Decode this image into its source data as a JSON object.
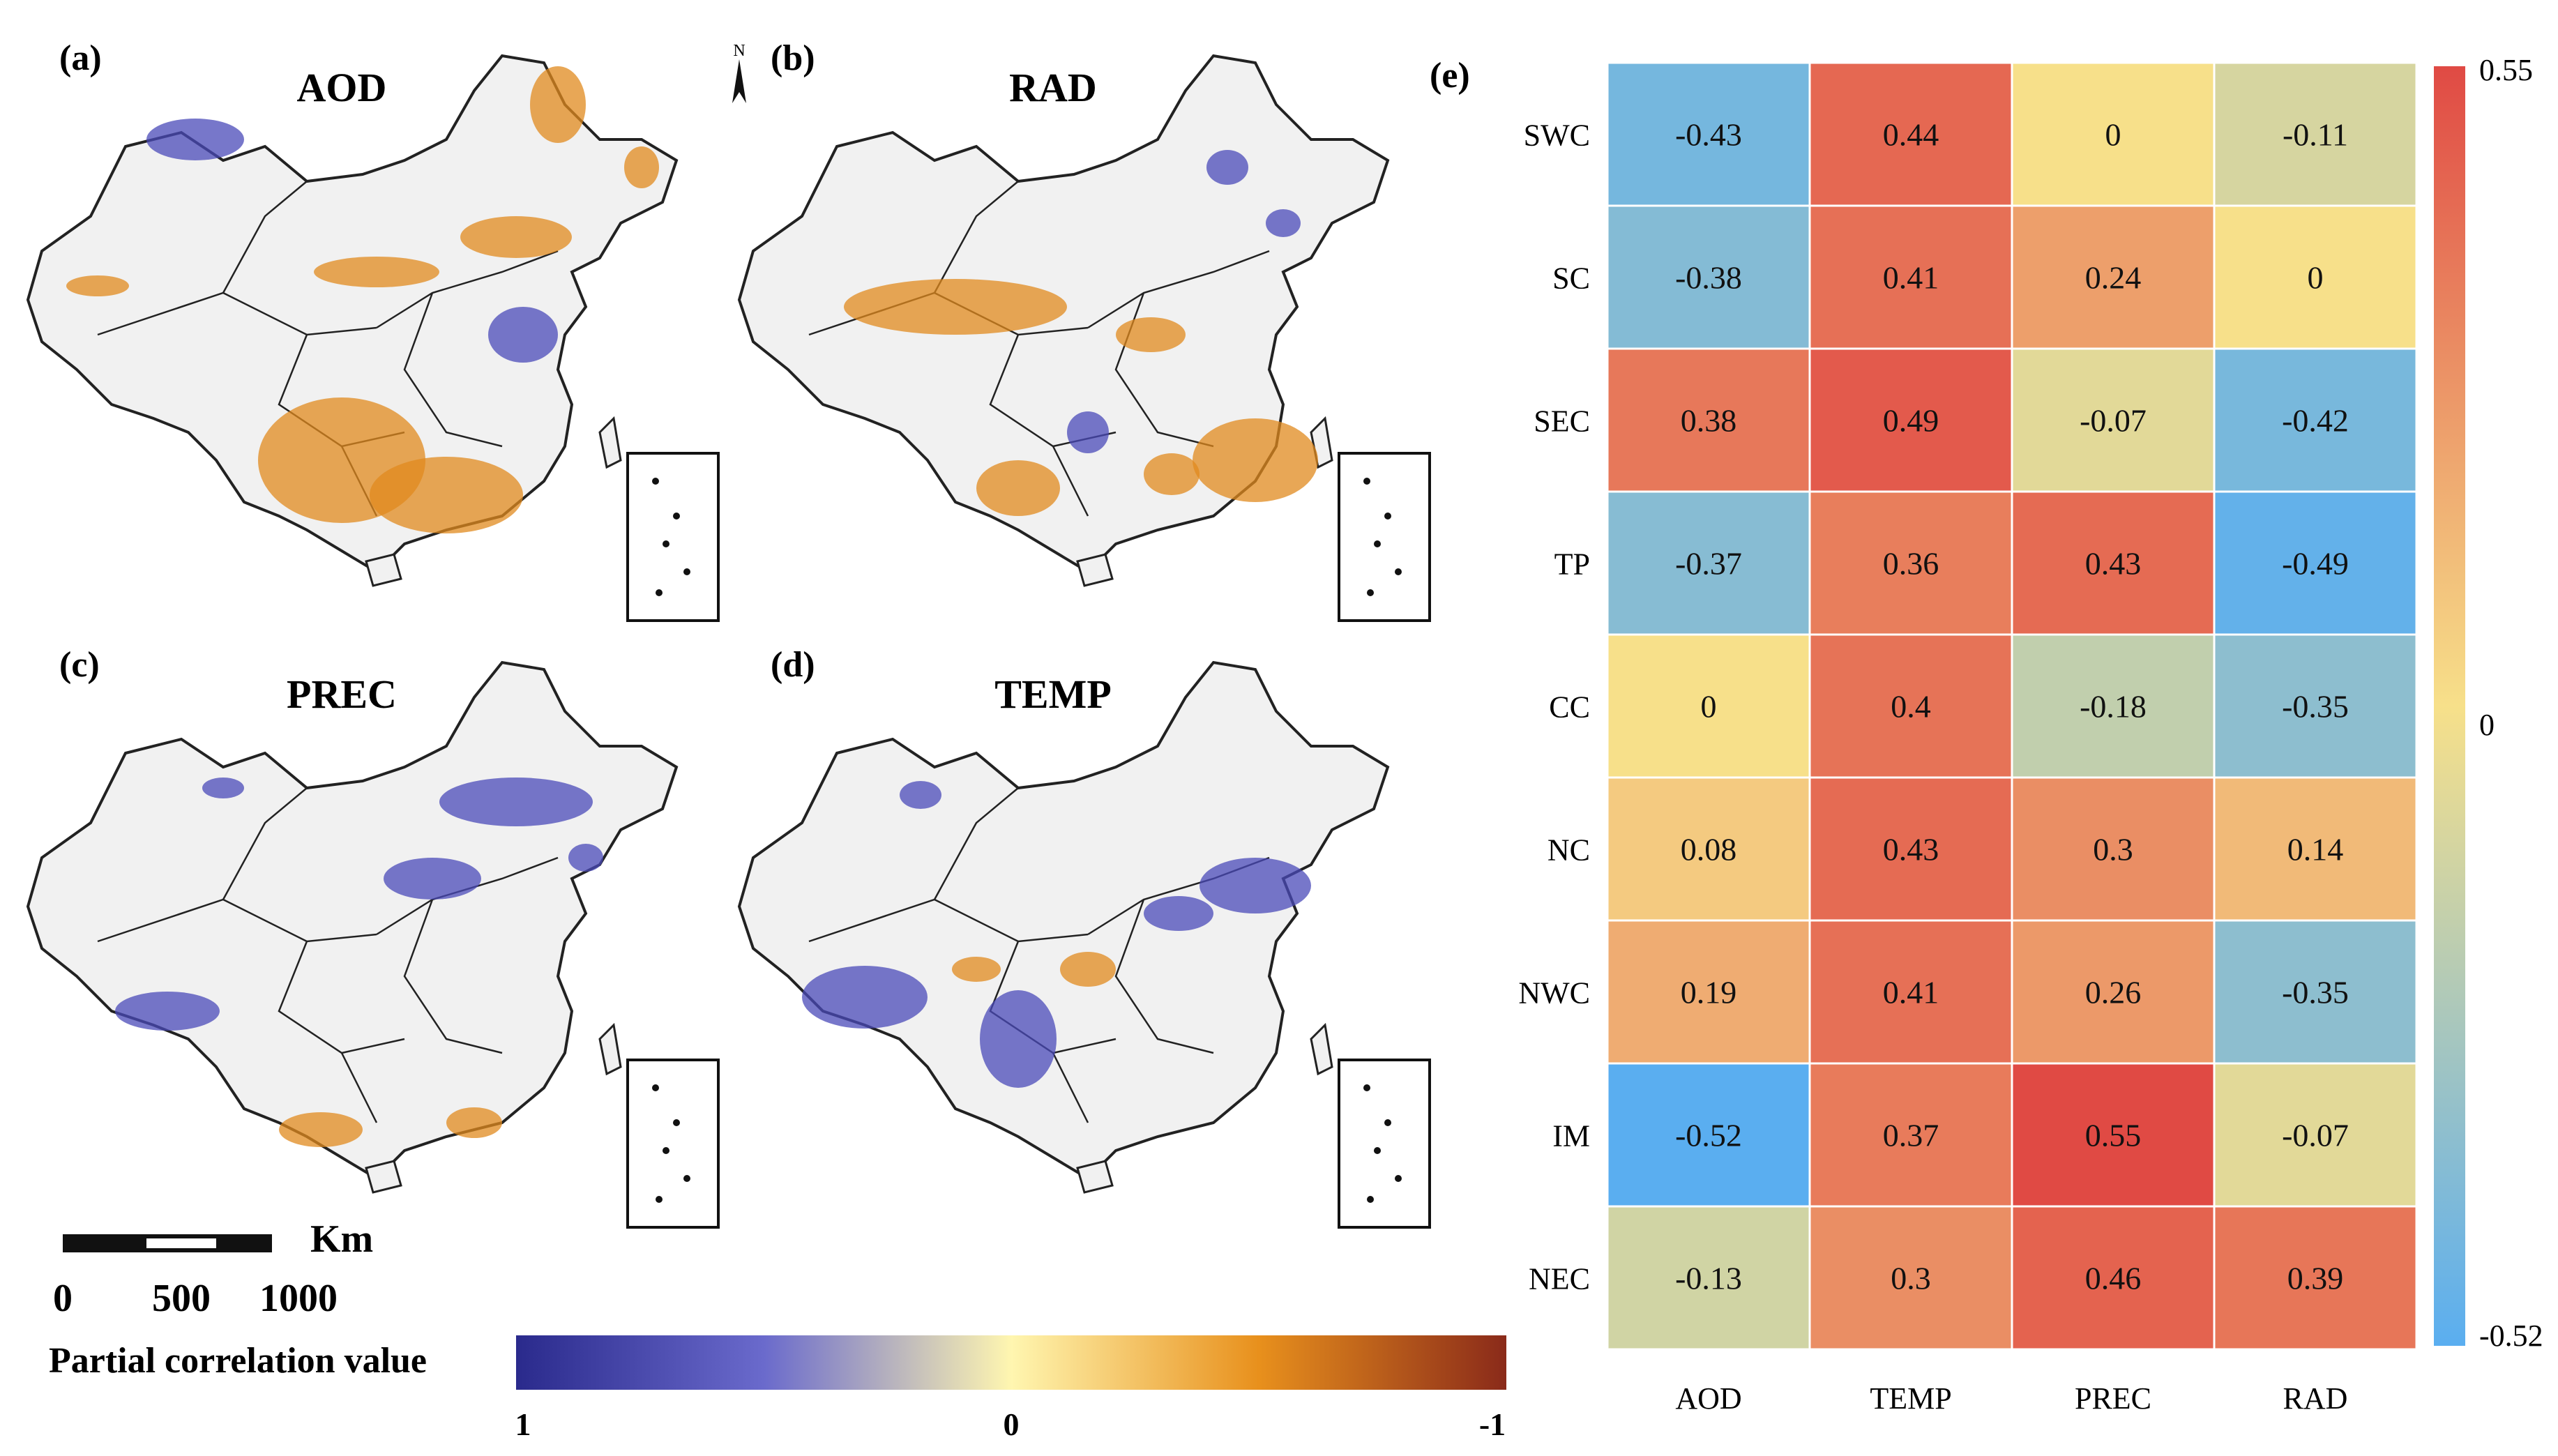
{
  "panels": [
    {
      "letter": "(a)",
      "title": "AOD"
    },
    {
      "letter": "(b)",
      "title": "RAD"
    },
    {
      "letter": "(c)",
      "title": "PREC"
    },
    {
      "letter": "(d)",
      "title": "TEMP"
    }
  ],
  "north_label": "N",
  "scalebar": {
    "unit": "Km",
    "ticks": [
      "0",
      "500",
      "1000"
    ]
  },
  "map_legend": {
    "title": "Partial correlation value",
    "min_label": "1",
    "mid_label": "0",
    "max_label": "-1",
    "colors": [
      "#2a2a8c",
      "#6a6acc",
      "#fff6b0",
      "#e8901c",
      "#8a2a1a"
    ]
  },
  "map_colors": {
    "positive": "#e08a1e",
    "negative": "#4a4ab8",
    "land": "#f1f1f1"
  },
  "heatmap_letter": "(e)",
  "chart_data": {
    "type": "heatmap",
    "rows": [
      "SWC",
      "SC",
      "SEC",
      "TP",
      "CC",
      "NC",
      "NWC",
      "IM",
      "NEC"
    ],
    "columns": [
      "AOD",
      "TEMP",
      "PREC",
      "RAD"
    ],
    "values": [
      [
        -0.43,
        0.44,
        0,
        -0.11
      ],
      [
        -0.38,
        0.41,
        0.24,
        0
      ],
      [
        0.38,
        0.49,
        -0.07,
        -0.42
      ],
      [
        -0.37,
        0.36,
        0.43,
        -0.49
      ],
      [
        0,
        0.4,
        -0.18,
        -0.35
      ],
      [
        0.08,
        0.43,
        0.3,
        0.14
      ],
      [
        0.19,
        0.41,
        0.26,
        -0.35
      ],
      [
        -0.52,
        0.37,
        0.55,
        -0.07
      ],
      [
        -0.13,
        0.3,
        0.46,
        0.39
      ]
    ],
    "labels": [
      [
        "-0.43",
        "0.44",
        "0",
        "-0.11"
      ],
      [
        "-0.38",
        "0.41",
        "0.24",
        "0"
      ],
      [
        "0.38",
        "0.49",
        "-0.07",
        "-0.42"
      ],
      [
        "-0.37",
        "0.36",
        "0.43",
        "-0.49"
      ],
      [
        "0",
        "0.4",
        "-0.18",
        "-0.35"
      ],
      [
        "0.08",
        "0.43",
        "0.3",
        "0.14"
      ],
      [
        "0.19",
        "0.41",
        "0.26",
        "-0.35"
      ],
      [
        "-0.52",
        "0.37",
        "0.55",
        "-0.07"
      ],
      [
        "-0.13",
        "0.3",
        "0.46",
        "0.39"
      ]
    ],
    "vmin": -0.52,
    "vmax": 0.55,
    "colorbar_labels": {
      "max": "0.55",
      "mid": "0",
      "min": "-0.52"
    },
    "colormap": {
      "low": "#5aaef0",
      "mid": "#f7e08a",
      "high": "#e04a44"
    }
  }
}
